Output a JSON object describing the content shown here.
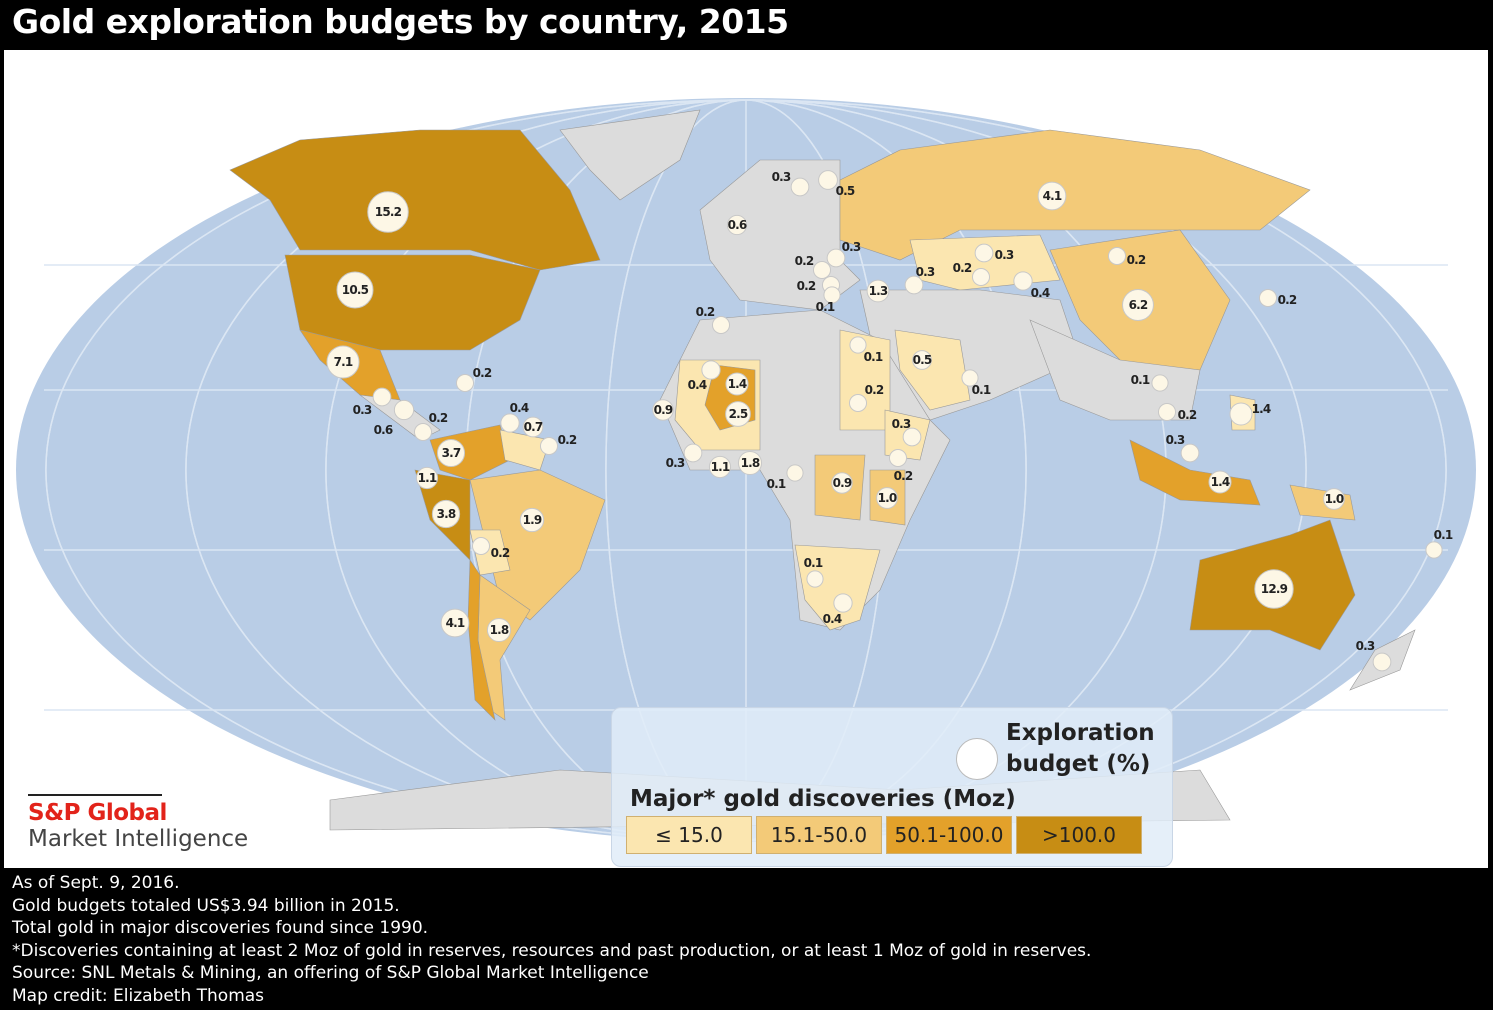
{
  "title": "Gold exploration budgets by country, 2015",
  "colors": {
    "ocean": "#b9cde6",
    "no_data_land": "#dcdcdc",
    "tier_le_15": "#fbe6b0",
    "tier_15_50": "#f3ca78",
    "tier_50_100": "#e3a12a",
    "tier_gt_100": "#c78d14",
    "bubble": "#fdf7e6",
    "brand_red": "#e2231a"
  },
  "legend": {
    "budget_label_line1": "Exploration",
    "budget_label_line2": "budget (%)",
    "discoveries_title": "Major* gold discoveries (Moz)",
    "tiers": [
      "≤ 15.0",
      "15.1-50.0",
      "50.1-100.0",
      ">100.0"
    ]
  },
  "budgets": [
    {
      "value": "15.2",
      "tier": 4
    },
    {
      "value": "10.5",
      "tier": 4
    },
    {
      "value": "7.1",
      "tier": 3
    },
    {
      "value": "0.2"
    },
    {
      "value": "0.3"
    },
    {
      "value": "0.6"
    },
    {
      "value": "0.2"
    },
    {
      "value": "3.7"
    },
    {
      "value": "1.1"
    },
    {
      "value": "3.8"
    },
    {
      "value": "0.2"
    },
    {
      "value": "1.9"
    },
    {
      "value": "4.1"
    },
    {
      "value": "1.8"
    },
    {
      "value": "0.4"
    },
    {
      "value": "0.7"
    },
    {
      "value": "0.2"
    },
    {
      "value": "0.3"
    },
    {
      "value": "0.5"
    },
    {
      "value": "0.6"
    },
    {
      "value": "0.3"
    },
    {
      "value": "0.2"
    },
    {
      "value": "0.2"
    },
    {
      "value": "0.1"
    },
    {
      "value": "1.3"
    },
    {
      "value": "0.3"
    },
    {
      "value": "0.3"
    },
    {
      "value": "0.2"
    },
    {
      "value": "0.4"
    },
    {
      "value": "4.1"
    },
    {
      "value": "0.2"
    },
    {
      "value": "6.2"
    },
    {
      "value": "0.2"
    },
    {
      "value": "0.2"
    },
    {
      "value": "0.1"
    },
    {
      "value": "0.5"
    },
    {
      "value": "0.1"
    },
    {
      "value": "0.2"
    },
    {
      "value": "0.3"
    },
    {
      "value": "0.4"
    },
    {
      "value": "1.4"
    },
    {
      "value": "2.5"
    },
    {
      "value": "0.9"
    },
    {
      "value": "0.3"
    },
    {
      "value": "1.1"
    },
    {
      "value": "1.8"
    },
    {
      "value": "0.1"
    },
    {
      "value": "0.9"
    },
    {
      "value": "0.2"
    },
    {
      "value": "1.0"
    },
    {
      "value": "0.1"
    },
    {
      "value": "0.4"
    },
    {
      "value": "0.1"
    },
    {
      "value": "0.2"
    },
    {
      "value": "0.3"
    },
    {
      "value": "1.4"
    },
    {
      "value": "1.4"
    },
    {
      "value": "1.0"
    },
    {
      "value": "0.1"
    },
    {
      "value": "12.9"
    },
    {
      "value": "0.3"
    }
  ],
  "logo": {
    "brand": "S&P Global",
    "sub": "Market Intelligence"
  },
  "notes": [
    "As of Sept. 9, 2016.",
    "Gold budgets totaled US$3.94 billion in 2015.",
    "Total gold in major discoveries found since 1990.",
    "*Discoveries containing at least 2 Moz of gold in reserves, resources and past production, or at least 1 Moz of gold in reserves.",
    "Source: SNL Metals & Mining, an offering of S&P Global Market Intelligence",
    "Map credit: Elizabeth Thomas"
  ]
}
